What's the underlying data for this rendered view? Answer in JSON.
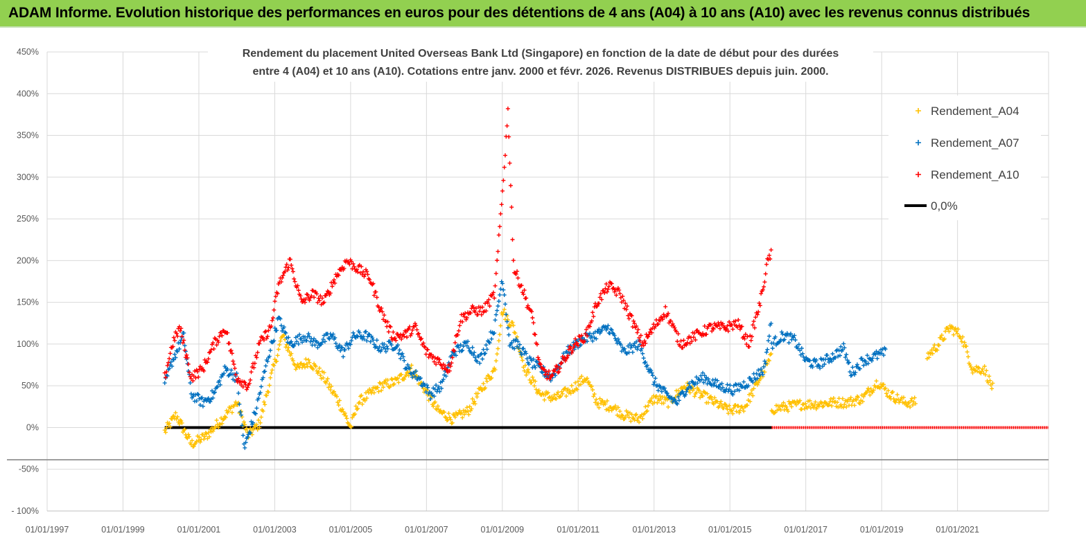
{
  "banner": {
    "title": "ADAM Informe. Evolution historique des performances en euros pour des détentions de 4 ans (A04) à 10 ans (A10) avec les revenus connus distribués"
  },
  "colors": {
    "banner_bg": "#92d050",
    "A04": "#ffc000",
    "A07": "#0070c0",
    "A10": "#ff0000",
    "zero": "#000000",
    "grid": "#d9d9d9"
  },
  "chart_data": {
    "type": "scatter",
    "title_lines": [
      "Rendement du placement United Overseas Bank Ltd (Singapore) en fonction de la date de début pour des durées",
      "entre 4 (A04) et 10 ans (A10).  Cotations entre janv. 2000 et févr. 2026. Revenus DISTRIBUES depuis juin. 2000."
    ],
    "x_range": [
      1997.0,
      2023.4
    ],
    "x_tick_labels": [
      "01/01/1997",
      "01/01/1999",
      "01/01/2001",
      "01/01/2003",
      "01/01/2005",
      "01/01/2007",
      "01/01/2009",
      "01/01/2011",
      "01/01/2013",
      "01/01/2015",
      "01/01/2017",
      "01/01/2019",
      "01/01/2021"
    ],
    "x_tick_years": [
      1997,
      1999,
      2001,
      2003,
      2005,
      2007,
      2009,
      2011,
      2013,
      2015,
      2017,
      2019,
      2021
    ],
    "y_range": [
      -100,
      450
    ],
    "y_ticks": [
      -100,
      -50,
      0,
      50,
      100,
      150,
      200,
      250,
      300,
      350,
      400,
      450
    ],
    "y_tick_labels": [
      "- 100%",
      "-50%",
      "0%",
      "50%",
      "100%",
      "150%",
      "200%",
      "250%",
      "300%",
      "350%",
      "400%",
      "450%"
    ],
    "legend": {
      "position": "top-right",
      "entries": [
        "Rendement_A04",
        "Rendement_A07",
        "Rendement_A10",
        "0,0%"
      ]
    },
    "series": [
      {
        "name": "Rendement_A04",
        "marker": "+",
        "segments": [
          {
            "x": [
              2000.1,
              2000.4,
              2000.8,
              2001.2,
              2001.6,
              2002.0,
              2002.3,
              2002.6,
              2002.9,
              2003.2,
              2003.6,
              2003.9,
              2004.3,
              2004.7,
              2005.0,
              2005.2,
              2005.5,
              2005.8,
              2006.2,
              2006.6,
              2006.9,
              2007.3,
              2007.7,
              2008.1,
              2008.5,
              2008.8,
              2009.0,
              2009.3,
              2009.6,
              2010.0,
              2010.4,
              2010.8,
              2011.2,
              2011.5,
              2011.9,
              2012.2,
              2012.6,
              2013.0,
              2013.4,
              2013.8,
              2014.2,
              2014.6,
              2015.0,
              2015.4,
              2015.8,
              2016.1
            ],
            "y": [
              -5,
              15,
              -20,
              -10,
              10,
              30,
              -10,
              5,
              60,
              110,
              70,
              80,
              60,
              30,
              0,
              30,
              40,
              50,
              55,
              70,
              50,
              20,
              10,
              20,
              50,
              70,
              140,
              120,
              70,
              40,
              35,
              45,
              60,
              30,
              25,
              15,
              10,
              35,
              30,
              50,
              40,
              30,
              20,
              25,
              60,
              85
            ]
          },
          {
            "x": [
              2016.1,
              2016.5,
              2016.9,
              2017.3,
              2017.7,
              2018.1,
              2018.5,
              2018.9,
              2019.2,
              2019.6,
              2019.9
            ],
            "y": [
              22,
              25,
              28,
              28,
              30,
              30,
              35,
              55,
              40,
              30,
              30
            ]
          },
          {
            "x": [
              2020.2,
              2020.5,
              2020.8,
              2021.1,
              2021.4,
              2021.7,
              2021.95
            ],
            "y": [
              85,
              100,
              120,
              110,
              70,
              70,
              45
            ]
          }
        ]
      },
      {
        "name": "Rendement_A07",
        "marker": "+",
        "segments": [
          {
            "x": [
              2000.1,
              2000.3,
              2000.6,
              2000.8,
              2001.1,
              2001.4,
              2001.7,
              2002.0,
              2002.2,
              2002.5,
              2002.8,
              2003.1,
              2003.4,
              2003.8,
              2004.1,
              2004.5,
              2004.8,
              2005.1,
              2005.4,
              2005.8,
              2006.2,
              2006.5,
              2006.8,
              2007.1,
              2007.4,
              2007.7,
              2008.1,
              2008.4,
              2008.8,
              2009.0,
              2009.2,
              2009.4,
              2009.7,
              2010.0,
              2010.3,
              2010.7,
              2011.1,
              2011.4,
              2011.8,
              2012.2,
              2012.6,
              2013.0,
              2013.3,
              2013.6,
              2013.9,
              2014.3,
              2014.7,
              2015.1,
              2015.5,
              2015.9,
              2016.1
            ],
            "y": [
              50,
              80,
              110,
              40,
              30,
              40,
              70,
              60,
              -25,
              20,
              80,
              130,
              100,
              110,
              100,
              110,
              90,
              110,
              110,
              95,
              100,
              70,
              60,
              40,
              50,
              90,
              100,
              80,
              120,
              180,
              100,
              100,
              80,
              70,
              60,
              90,
              105,
              110,
              120,
              90,
              100,
              55,
              40,
              30,
              50,
              60,
              50,
              45,
              55,
              70,
              130
            ]
          },
          {
            "x": [
              2016.1,
              2016.4,
              2016.7,
              2017.0,
              2017.3,
              2017.7,
              2018.0,
              2018.2,
              2018.5,
              2018.8,
              2019.1
            ],
            "y": [
              100,
              110,
              105,
              80,
              75,
              85,
              95,
              65,
              80,
              85,
              90
            ]
          }
        ]
      },
      {
        "name": "Rendement_A10",
        "marker": "+",
        "segments": [
          {
            "x": [
              2000.1,
              2000.3,
              2000.5,
              2000.8,
              2001.1,
              2001.4,
              2001.7,
              2002.0,
              2002.3,
              2002.6,
              2002.9,
              2003.1,
              2003.4,
              2003.7,
              2004.0,
              2004.3,
              2004.6,
              2004.9,
              2005.2,
              2005.5,
              2005.8,
              2006.1,
              2006.4,
              2006.7,
              2007.0,
              2007.3,
              2007.6,
              2007.9,
              2008.2,
              2008.5,
              2008.8,
              2009.0,
              2009.15,
              2009.3,
              2009.5,
              2009.8,
              2010.0,
              2010.3,
              2010.6,
              2010.9,
              2011.2,
              2011.5,
              2011.8,
              2012.1,
              2012.4,
              2012.7,
              2013.0,
              2013.3,
              2013.7,
              2014.1,
              2014.5,
              2014.9,
              2015.2,
              2015.5,
              2015.8,
              2016.0,
              2016.1
            ],
            "y": [
              60,
              100,
              120,
              60,
              70,
              100,
              120,
              60,
              50,
              100,
              120,
              170,
              200,
              150,
              160,
              150,
              180,
              200,
              190,
              180,
              140,
              110,
              110,
              120,
              90,
              80,
              70,
              130,
              140,
              140,
              160,
              280,
              380,
              190,
              170,
              130,
              70,
              60,
              80,
              100,
              110,
              150,
              170,
              160,
              130,
              100,
              120,
              140,
              100,
              110,
              120,
              120,
              125,
              100,
              150,
              200,
              210
            ]
          }
        ]
      }
    ],
    "zero_line": {
      "name": "0,0%",
      "value": 0,
      "x_start": 2000.1,
      "x_solid_end": 2016.1,
      "x_end": 2023.4
    }
  }
}
